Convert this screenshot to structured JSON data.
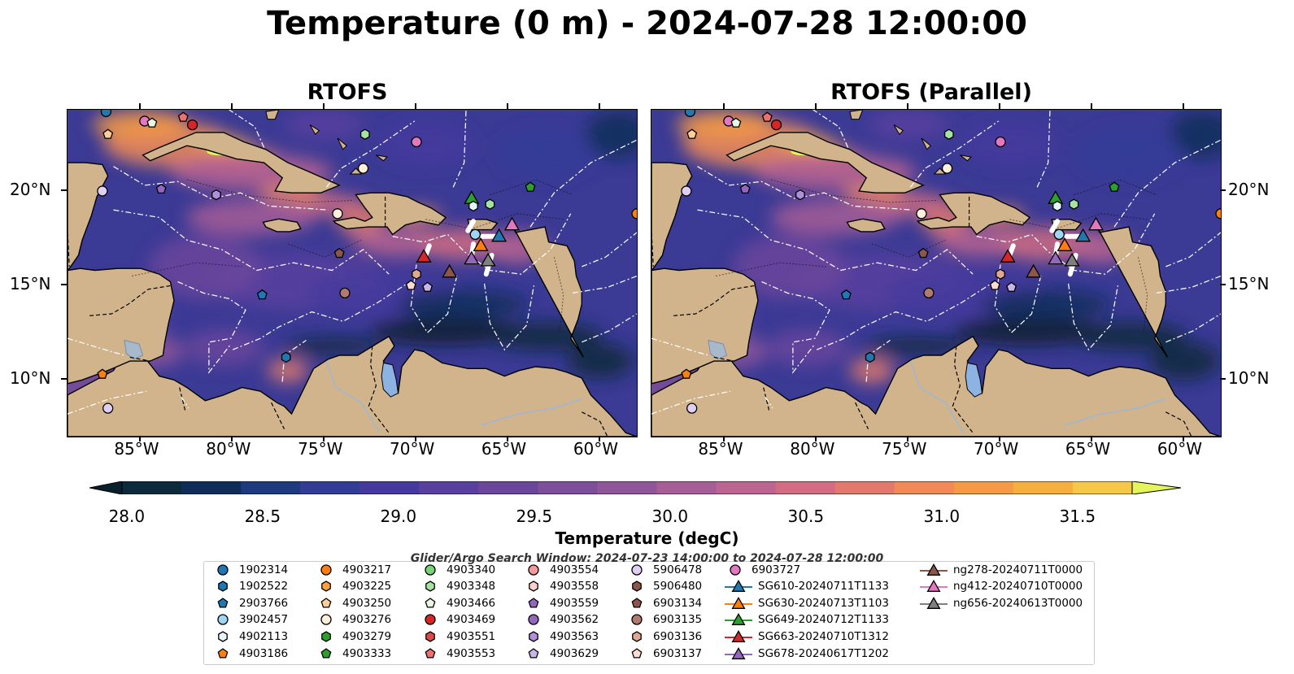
{
  "title": "Temperature (0 m) - 2024-07-28 12:00:00",
  "panels": [
    {
      "title": "RTOFS"
    },
    {
      "title": "RTOFS (Parallel)"
    }
  ],
  "map": {
    "lon_range": [
      -89.0,
      -58.0
    ],
    "lat_range": [
      7.0,
      24.3
    ],
    "lon_ticks": [
      "85°W",
      "80°W",
      "75°W",
      "70°W",
      "65°W",
      "60°W"
    ],
    "lat_ticks": [
      "20°N",
      "15°N",
      "10°N"
    ],
    "land_color": "#d2b48c",
    "grid_style": "dash-dot white lines"
  },
  "colorbar": {
    "label": "Temperature (degC)",
    "min": 28.0,
    "max": 31.5,
    "step": 0.25,
    "extend": "both",
    "tick_labels": [
      "28.0",
      "28.5",
      "29.0",
      "29.5",
      "30.0",
      "30.5",
      "31.0",
      "31.5"
    ],
    "colors": [
      "#0b2a3c",
      "#102d59",
      "#1e3a7f",
      "#333d96",
      "#45399d",
      "#59409f",
      "#6b479c",
      "#7d4f9a",
      "#90569a",
      "#a75d96",
      "#bc6590",
      "#d16c82",
      "#e07a6c",
      "#f08a58",
      "#f49b47",
      "#f6ae3e",
      "#f5c84a"
    ],
    "under_color": "#081f2e",
    "over_color": "#e4f45a"
  },
  "search_window": "Glider/Argo Search Window: 2024-07-23 14:00:00 to 2024-07-28 12:00:00",
  "legend": [
    {
      "label": "1902314",
      "marker": "circle",
      "color": "#1f77b4"
    },
    {
      "label": "1902522",
      "marker": "hexagon",
      "color": "#1f77b4"
    },
    {
      "label": "2903766",
      "marker": "pentagon",
      "color": "#1f77b4"
    },
    {
      "label": "3902457",
      "marker": "circle",
      "color": "#9fd4f2"
    },
    {
      "label": "4902113",
      "marker": "hexagon",
      "color": "#e6f4fb"
    },
    {
      "label": "4903186",
      "marker": "pentagon",
      "color": "#ff7f0e"
    },
    {
      "label": "4903217",
      "marker": "circle",
      "color": "#ff7f0e"
    },
    {
      "label": "4903225",
      "marker": "hexagon",
      "color": "#ffa040"
    },
    {
      "label": "4903250",
      "marker": "pentagon",
      "color": "#ffcf9a"
    },
    {
      "label": "4903276",
      "marker": "circle",
      "color": "#fff0dc"
    },
    {
      "label": "4903279",
      "marker": "hexagon",
      "color": "#2ca02c"
    },
    {
      "label": "4903333",
      "marker": "pentagon",
      "color": "#2ca02c"
    },
    {
      "label": "4903340",
      "marker": "circle",
      "color": "#77d377"
    },
    {
      "label": "4903348",
      "marker": "hexagon",
      "color": "#a6e3a1"
    },
    {
      "label": "4903466",
      "marker": "pentagon",
      "color": "#e8f8e1"
    },
    {
      "label": "4903469",
      "marker": "circle",
      "color": "#d62728"
    },
    {
      "label": "4903551",
      "marker": "hexagon",
      "color": "#e04848"
    },
    {
      "label": "4903553",
      "marker": "pentagon",
      "color": "#f07070"
    },
    {
      "label": "4903554",
      "marker": "circle",
      "color": "#f59a9a"
    },
    {
      "label": "4903558",
      "marker": "hexagon",
      "color": "#fbd0d0"
    },
    {
      "label": "4903559",
      "marker": "pentagon",
      "color": "#9467bd"
    },
    {
      "label": "4903562",
      "marker": "circle",
      "color": "#9467bd"
    },
    {
      "label": "4903563",
      "marker": "hexagon",
      "color": "#b090dc"
    },
    {
      "label": "4903629",
      "marker": "pentagon",
      "color": "#c9b4ec"
    },
    {
      "label": "5906478",
      "marker": "circle",
      "color": "#e0cff5"
    },
    {
      "label": "5906480",
      "marker": "hexagon",
      "color": "#8c564b"
    },
    {
      "label": "6903134",
      "marker": "pentagon",
      "color": "#8c564b"
    },
    {
      "label": "6903135",
      "marker": "circle",
      "color": "#b07a70"
    },
    {
      "label": "6903136",
      "marker": "hexagon",
      "color": "#e0a890"
    },
    {
      "label": "6903137",
      "marker": "pentagon",
      "color": "#fbdcd0"
    },
    {
      "label": "6903727",
      "marker": "circle",
      "color": "#e377c2"
    },
    {
      "label": "SG610-20240711T1133",
      "marker": "triangle",
      "color": "#1f77b4"
    },
    {
      "label": "SG630-20240713T1103",
      "marker": "triangle",
      "color": "#ff7f0e"
    },
    {
      "label": "SG649-20240712T1133",
      "marker": "triangle",
      "color": "#2ca02c"
    },
    {
      "label": "SG663-20240710T1312",
      "marker": "triangle",
      "color": "#d62728"
    },
    {
      "label": "SG678-20240617T1202",
      "marker": "triangle",
      "color": "#9467bd"
    },
    {
      "label": "ng278-20240711T0000",
      "marker": "triangle",
      "color": "#8c564b"
    },
    {
      "label": "ng412-20240710T0000",
      "marker": "triangle",
      "color": "#e377c2"
    },
    {
      "label": "ng656-20240613T0000",
      "marker": "triangle",
      "color": "#7f7f7f"
    }
  ],
  "map_markers": [
    {
      "id": "1902314",
      "lon": -86.9,
      "lat": 24.2
    },
    {
      "id": "4903250",
      "lon": -86.8,
      "lat": 23.0
    },
    {
      "id": "6903727",
      "lon": -84.8,
      "lat": 23.7
    },
    {
      "id": "4903466",
      "lon": -84.4,
      "lat": 23.6
    },
    {
      "id": "4903553",
      "lon": -82.7,
      "lat": 23.9
    },
    {
      "id": "4903469",
      "lon": -82.2,
      "lat": 23.5
    },
    {
      "id": "4903348",
      "lon": -72.8,
      "lat": 23.0
    },
    {
      "id": "6903727",
      "lon": -70.0,
      "lat": 22.6
    },
    {
      "id": "4903276",
      "lon": -72.9,
      "lat": 21.2
    },
    {
      "id": "5906478",
      "lon": -87.1,
      "lat": 20.0
    },
    {
      "id": "4903559",
      "lon": -83.9,
      "lat": 20.1
    },
    {
      "id": "4903563",
      "lon": -80.9,
      "lat": 19.8
    },
    {
      "id": "4903333",
      "lon": -63.8,
      "lat": 20.2
    },
    {
      "id": "4903217",
      "lon": -58.0,
      "lat": 18.8
    },
    {
      "id": "4903276",
      "lon": -74.3,
      "lat": 18.8
    },
    {
      "id": "SG649-20240712T1133",
      "lon": -67.0,
      "lat": 19.6
    },
    {
      "id": "4903348",
      "lon": -66.0,
      "lat": 19.3
    },
    {
      "id": "4902113",
      "lon": -66.9,
      "lat": 19.2
    },
    {
      "id": "3902457",
      "lon": -66.8,
      "lat": 17.7
    },
    {
      "id": "SG630-20240713T1103",
      "lon": -66.5,
      "lat": 17.1
    },
    {
      "id": "SG610-20240711T1133",
      "lon": -65.5,
      "lat": 17.6
    },
    {
      "id": "ng412-20240710T0000",
      "lon": -64.8,
      "lat": 18.2
    },
    {
      "id": "6903134",
      "lon": -74.2,
      "lat": 16.7
    },
    {
      "id": "SG663-20240710T1312",
      "lon": -69.6,
      "lat": 16.5
    },
    {
      "id": "ng278-20240711T0000",
      "lon": -68.2,
      "lat": 15.7
    },
    {
      "id": "SG678-20240617T1202",
      "lon": -67.0,
      "lat": 16.4
    },
    {
      "id": "ng656-20240613T0000",
      "lon": -66.1,
      "lat": 16.3
    },
    {
      "id": "6903136",
      "lon": -70.0,
      "lat": 15.6
    },
    {
      "id": "6903137",
      "lon": -70.3,
      "lat": 15.0
    },
    {
      "id": "4903629",
      "lon": -69.4,
      "lat": 14.9
    },
    {
      "id": "6903135",
      "lon": -73.9,
      "lat": 14.6
    },
    {
      "id": "2903766",
      "lon": -78.4,
      "lat": 14.5
    },
    {
      "id": "1902522",
      "lon": -77.1,
      "lat": 11.2
    },
    {
      "id": "4903186",
      "lon": -87.1,
      "lat": 10.3
    },
    {
      "id": "5906478",
      "lon": -86.8,
      "lat": 8.5
    }
  ]
}
